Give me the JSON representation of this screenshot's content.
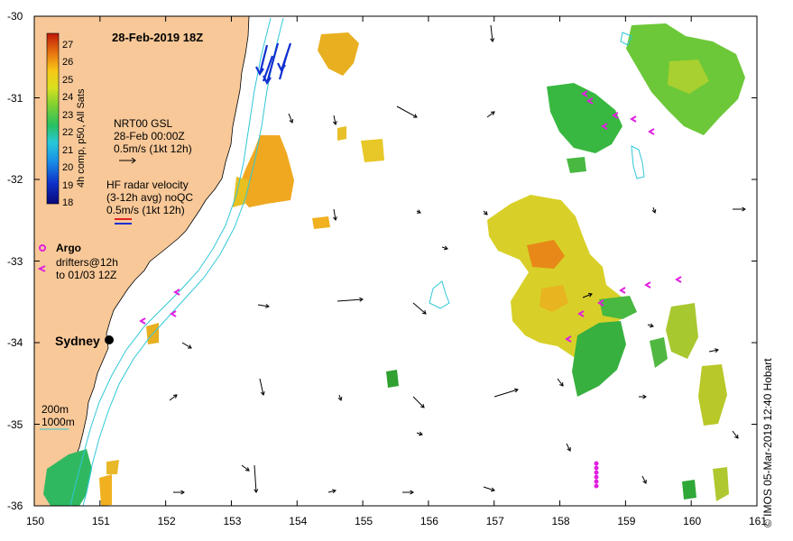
{
  "map": {
    "title": "28-Feb-2019 18Z",
    "lon_range": [
      150,
      161
    ],
    "lat_range": [
      -36,
      -30
    ],
    "x_ticks": [
      "150",
      "151",
      "152",
      "153",
      "154",
      "155",
      "156",
      "157",
      "158",
      "159",
      "160",
      "161"
    ],
    "y_ticks": [
      "-30",
      "-31",
      "-32",
      "-33",
      "-34",
      "-35",
      "-36"
    ],
    "city": {
      "name": "Sydney",
      "lon": 151.21,
      "lat": -33.87
    },
    "credit": "© IMOS 05-Mar-2019 12:40 Hobart"
  },
  "colorbar": {
    "ticks": [
      "27",
      "26",
      "25",
      "24",
      "23",
      "22",
      "21",
      "20",
      "19",
      "18"
    ],
    "title": "4h comp, p50, All Sats",
    "min": 18,
    "max": 27.7
  },
  "legend": {
    "gsl": {
      "line1": "NRT00 GSL",
      "line2": "28-Feb 00:00Z",
      "line3": "0.5m/s (1kt 12h)"
    },
    "radar": {
      "line1": "HF radar velocity",
      "line2": "(3-12h avg) noQC",
      "line3": "0.5m/s (1kt 12h)"
    },
    "argo": {
      "label": "Argo"
    },
    "drifters": {
      "line1": "drifters@12h",
      "line2": "to 01/03 12Z"
    },
    "isobaths": {
      "a": "200m",
      "b": "1000m"
    }
  },
  "colors": {
    "land": "#f8c898",
    "ocean": "#ffffff",
    "isobath": "#30c8d8",
    "radar_arrow": "#1030d0",
    "drifter": "#e020e0",
    "argo": "#e020e0"
  }
}
